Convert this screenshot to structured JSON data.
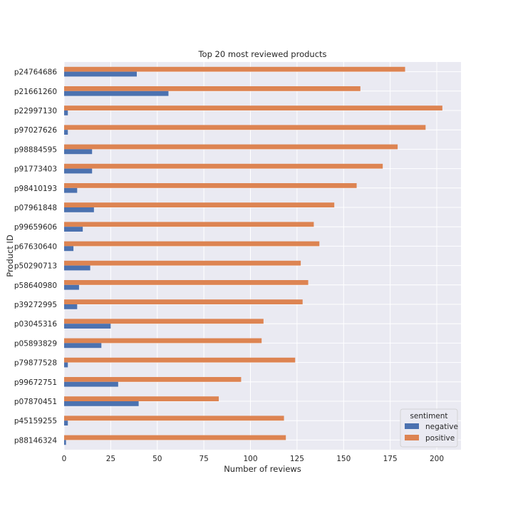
{
  "chart_data": {
    "type": "bar",
    "orientation": "horizontal",
    "title": "Top 20 most reviewed products",
    "xlabel": "Number of reviews",
    "ylabel": "Product ID",
    "xlim": [
      0,
      213
    ],
    "xticks": [
      0,
      25,
      50,
      75,
      100,
      125,
      150,
      175,
      200
    ],
    "grid": true,
    "legend_position": "lower-right",
    "legend_title": "sentiment",
    "categories": [
      "p24764686",
      "p21661260",
      "p22997130",
      "p97027626",
      "p98884595",
      "p91773403",
      "p98410193",
      "p07961848",
      "p99659606",
      "p67630640",
      "p50290713",
      "p58640980",
      "p39272995",
      "p03045316",
      "p05893829",
      "p79877528",
      "p99672751",
      "p07870451",
      "p45159255",
      "p88146324"
    ],
    "series": [
      {
        "name": "negative",
        "color": "#4c72b0",
        "values": [
          39,
          56,
          2,
          2,
          15,
          15,
          7,
          16,
          10,
          5,
          14,
          8,
          7,
          25,
          20,
          2,
          29,
          40,
          2,
          1
        ]
      },
      {
        "name": "positive",
        "color": "#dd8452",
        "values": [
          183,
          159,
          203,
          194,
          179,
          171,
          157,
          145,
          134,
          137,
          127,
          131,
          128,
          107,
          106,
          124,
          95,
          83,
          118,
          119
        ]
      }
    ],
    "colors": {
      "background": "#eaeaf2",
      "grid": "#ffffff",
      "text": "#262626"
    }
  }
}
